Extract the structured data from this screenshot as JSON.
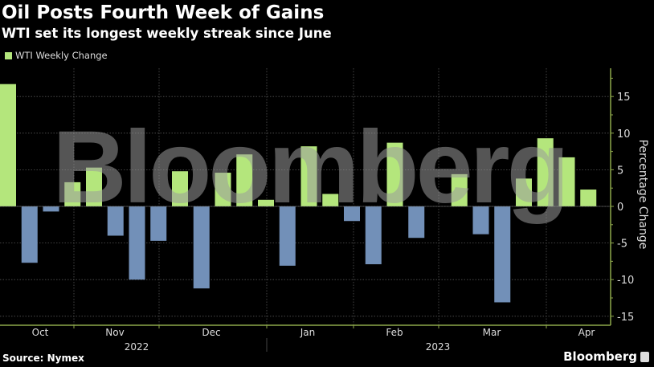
{
  "header": {
    "title": "Oil Posts Fourth Week of Gains",
    "subtitle": "WTI set its longest weekly streak since June"
  },
  "footer": {
    "source": "Source: Nymex",
    "brand": "Bloomberg"
  },
  "watermark": "Bloomberg",
  "colors": {
    "positive": "#b4e67c",
    "negative": "#7290b8",
    "axis": "#8ea84a",
    "grid": "#555555"
  },
  "chart_data": {
    "type": "bar",
    "title": "Oil Posts Fourth Week of Gains",
    "subtitle": "WTI set its longest weekly streak since June",
    "legend": [
      {
        "name": "WTI Weekly Change",
        "color": "#b4e67c"
      }
    ],
    "legend_placement": "top-left",
    "ylabel": "Percentage Change",
    "ylim": [
      -15,
      18
    ],
    "yticks": [
      15,
      10,
      5,
      0,
      -5,
      -10,
      -15
    ],
    "grid": true,
    "x_month_labels": [
      "Oct",
      "Nov",
      "Dec",
      "Jan",
      "Feb",
      "Mar",
      "Apr"
    ],
    "x_year_labels": [
      "2022",
      "2023"
    ],
    "categories": [
      "2022-10-07",
      "2022-10-14",
      "2022-10-21",
      "2022-10-28",
      "2022-11-04",
      "2022-11-11",
      "2022-11-18",
      "2022-11-23",
      "2022-12-02",
      "2022-12-09",
      "2022-12-16",
      "2022-12-23",
      "2022-12-30",
      "2023-01-06",
      "2023-01-13",
      "2023-01-20",
      "2023-01-27",
      "2023-02-03",
      "2023-02-10",
      "2023-02-17",
      "2023-02-24",
      "2023-03-03",
      "2023-03-10",
      "2023-03-17",
      "2023-03-24",
      "2023-03-31",
      "2023-04-06",
      "2023-04-14"
    ],
    "series": [
      {
        "name": "WTI Weekly Change",
        "values": [
          16.7,
          -7.7,
          -0.7,
          3.3,
          5.3,
          -4.0,
          -10.0,
          -4.7,
          4.8,
          -11.2,
          4.6,
          7.1,
          0.9,
          -8.1,
          8.2,
          1.7,
          -2.0,
          -7.9,
          8.7,
          -4.3,
          0.0,
          4.4,
          -3.8,
          -13.1,
          3.8,
          9.3,
          6.7,
          2.3
        ]
      }
    ]
  }
}
